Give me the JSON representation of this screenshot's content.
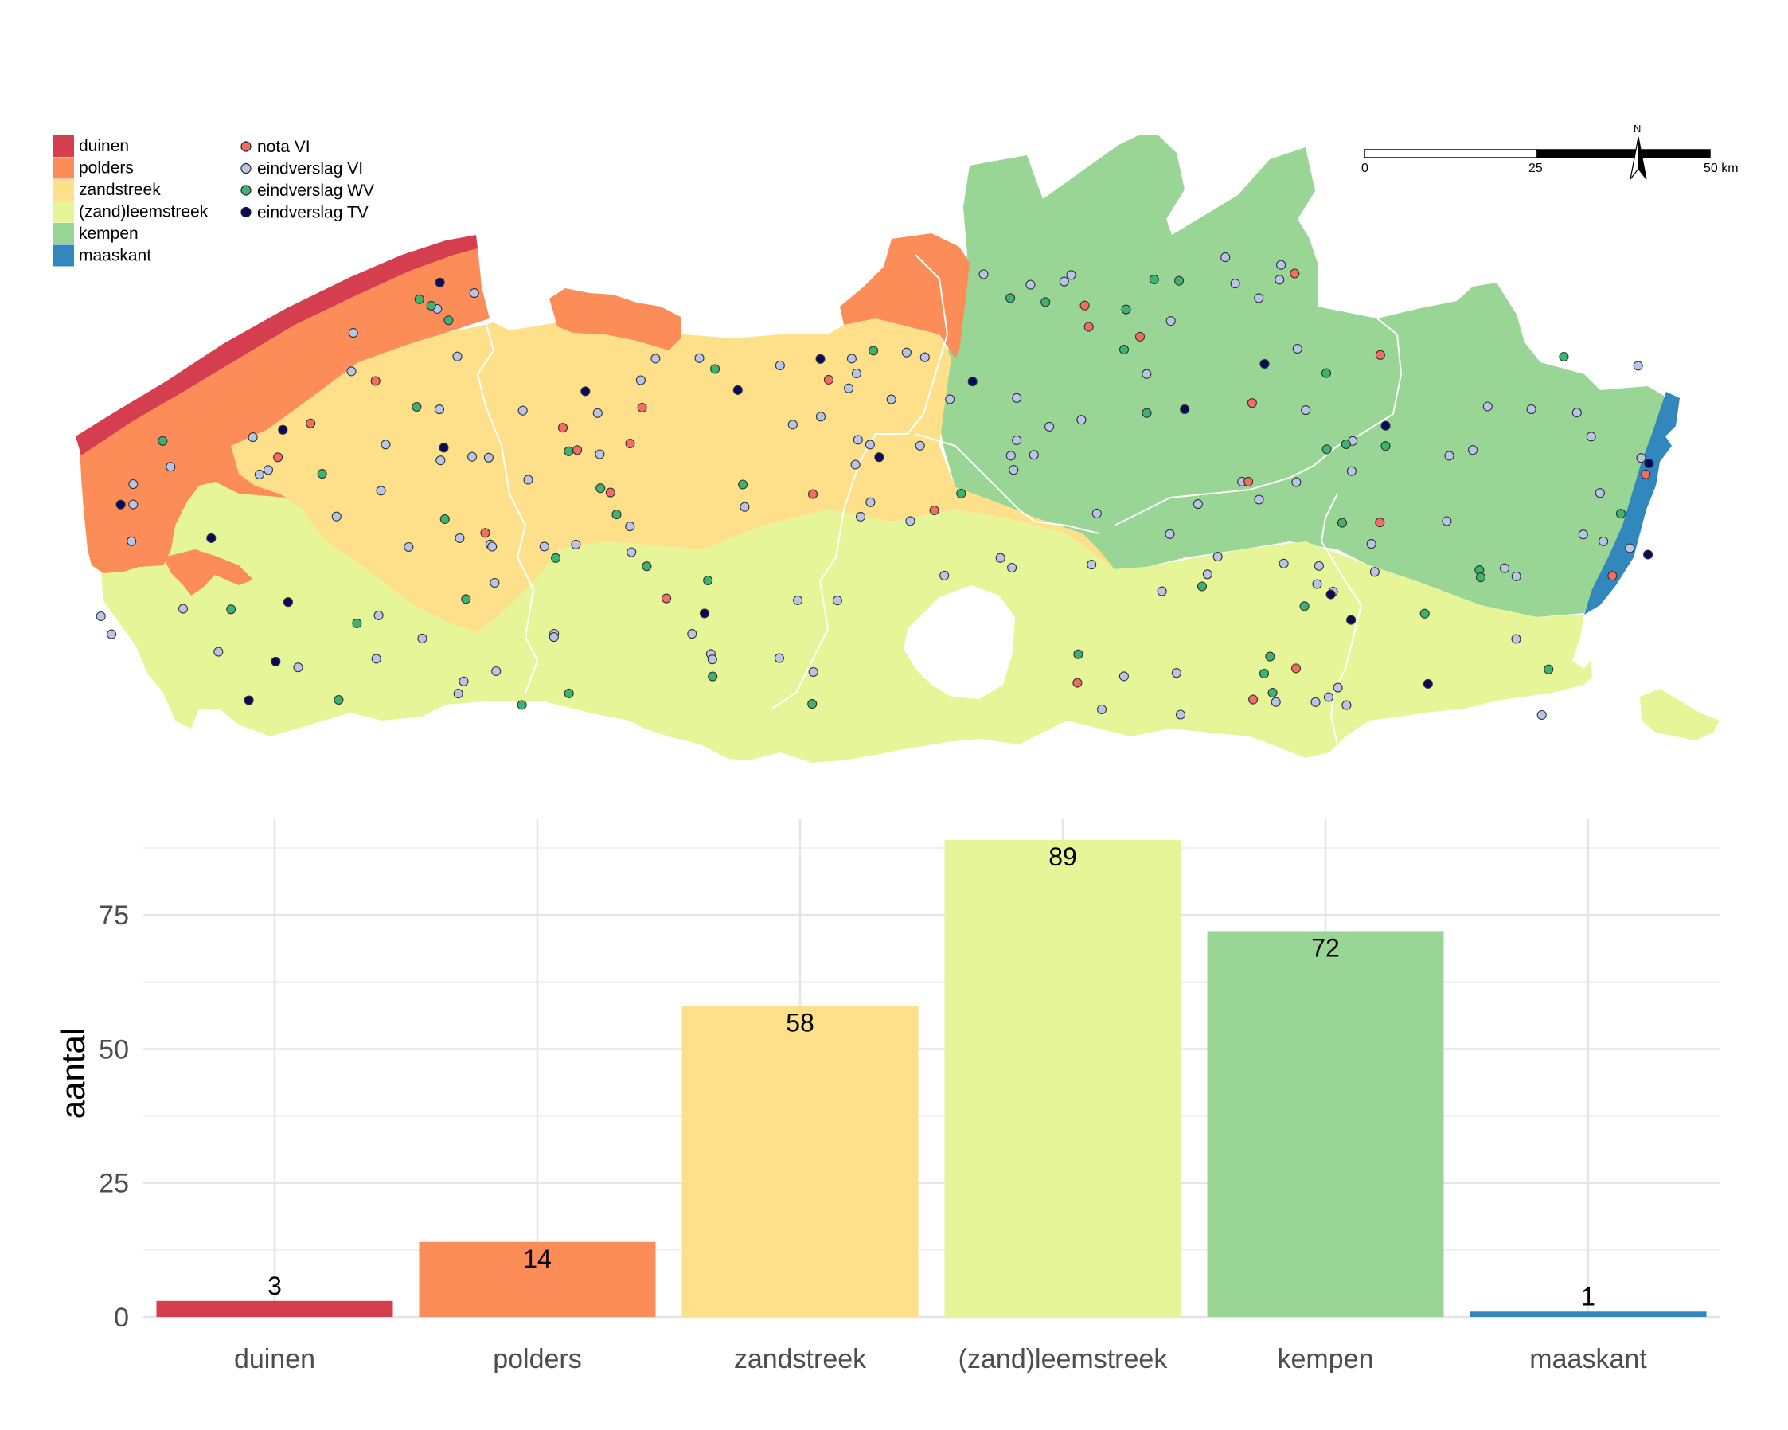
{
  "colors": {
    "duinen": "#d53e4f",
    "polders": "#fc8d59",
    "zandstreek": "#fee08b",
    "zandleemstreek": "#e6f598",
    "kempen": "#99d594",
    "maaskant": "#3288bd",
    "nota_vi": "#f46d65",
    "eindverslag_vi": "#b8c4e8",
    "eindverslag_wv": "#3cb371",
    "eindverslag_tv": "#0a0a5a"
  },
  "map": {
    "region_legend": [
      {
        "label": "duinen",
        "color": "#d53e4f"
      },
      {
        "label": "polders",
        "color": "#fc8d59"
      },
      {
        "label": "zandstreek",
        "color": "#fee08b"
      },
      {
        "label": "(zand)leemstreek",
        "color": "#e6f598"
      },
      {
        "label": "kempen",
        "color": "#99d594"
      },
      {
        "label": "maaskant",
        "color": "#3288bd"
      }
    ],
    "point_legend": [
      {
        "label": "nota VI",
        "color": "#f46d65"
      },
      {
        "label": "eindverslag VI",
        "color": "#b8c4e8"
      },
      {
        "label": "eindverslag WV",
        "color": "#3cb371"
      },
      {
        "label": "eindverslag TV",
        "color": "#0a0a5a"
      }
    ],
    "scalebar": {
      "ticks": [
        "0",
        "25",
        "50 km"
      ],
      "north": "N"
    }
  },
  "chart_data": {
    "type": "bar",
    "categories": [
      "duinen",
      "polders",
      "zandstreek",
      "(zand)leemstreek",
      "kempen",
      "maaskant"
    ],
    "values": [
      3,
      14,
      58,
      89,
      72,
      1
    ],
    "value_labels": [
      "3",
      "14",
      "58",
      "89",
      "72",
      "1"
    ],
    "bar_colors": [
      "#d53e4f",
      "#fc8d59",
      "#fee08b",
      "#e6f598",
      "#99d594",
      "#3288bd"
    ],
    "title": "",
    "xlabel": "",
    "ylabel": "aantal",
    "ylim": [
      0,
      93
    ],
    "yticks": [
      0,
      25,
      50,
      75
    ],
    "ytick_labels": [
      "0",
      "25",
      "50",
      "75"
    ],
    "grid": true,
    "legend": "none"
  }
}
